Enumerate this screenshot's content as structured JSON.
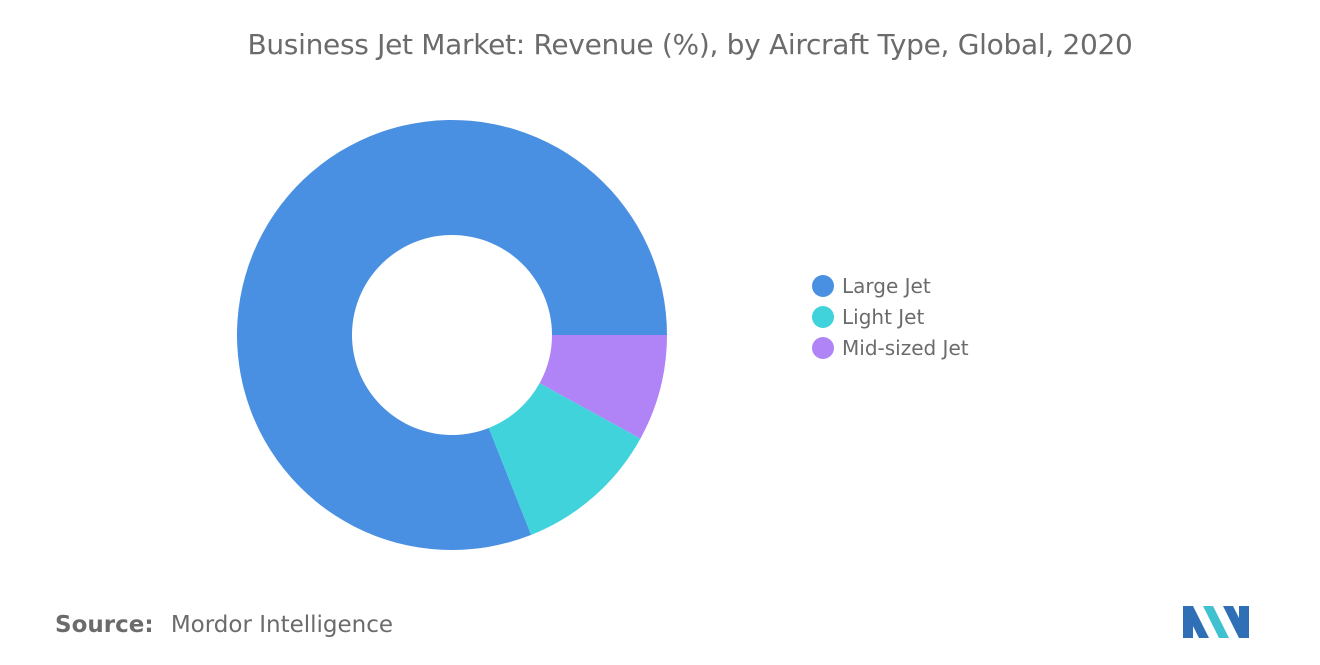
{
  "chart_data": {
    "type": "pie",
    "variant": "donut",
    "title": "Business Jet Market: Revenue (%), by Aircraft Type, Global, 2020",
    "legend_position": "right",
    "slices": [
      {
        "label": "Large Jet",
        "value": 81,
        "color": "#4a90e2"
      },
      {
        "label": "Light Jet",
        "value": 11,
        "color": "#40d3db"
      },
      {
        "label": "Mid-sized Jet",
        "value": 8,
        "color": "#b084f7"
      }
    ]
  },
  "source": {
    "label": "Source:",
    "value": "Mordor Intelligence"
  },
  "logo": {
    "name": "mordor-intelligence-logo",
    "colors": [
      "#2f6fb5",
      "#3fc1cf"
    ]
  }
}
